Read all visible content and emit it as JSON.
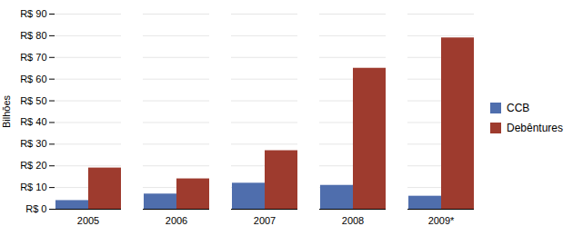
{
  "chart_data": {
    "type": "bar",
    "categories": [
      "2005",
      "2006",
      "2007",
      "2008",
      "2009*"
    ],
    "series": [
      {
        "name": "CCB",
        "color": "#4F6EAD",
        "values": [
          4,
          7,
          12,
          11,
          6
        ]
      },
      {
        "name": "Debêntures",
        "color": "#9E3B2E",
        "values": [
          19,
          14,
          27,
          65,
          79
        ]
      }
    ],
    "ylabel": "Bilhões",
    "ylim": [
      0,
      90
    ],
    "yticks": [
      {
        "value": 0,
        "label": "R$ 0"
      },
      {
        "value": 10,
        "label": "R$ 10"
      },
      {
        "value": 20,
        "label": "R$ 20"
      },
      {
        "value": 30,
        "label": "R$ 30"
      },
      {
        "value": 40,
        "label": "R$ 40"
      },
      {
        "value": 50,
        "label": "R$ 50"
      },
      {
        "value": 60,
        "label": "R$ 60"
      },
      {
        "value": 70,
        "label": "R$ 70"
      },
      {
        "value": 80,
        "label": "R$ 80"
      },
      {
        "value": 90,
        "label": "R$ 90"
      }
    ],
    "grid": true,
    "legend": "right"
  }
}
